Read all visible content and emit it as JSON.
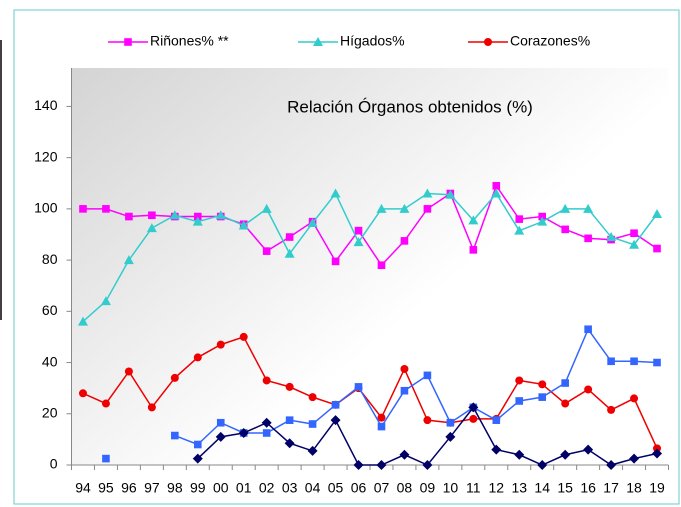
{
  "chart_data": {
    "type": "line",
    "title": "Relación Órganos obtenidos (%)",
    "categories": [
      "94",
      "95",
      "96",
      "97",
      "98",
      "99",
      "00",
      "01",
      "02",
      "03",
      "04",
      "05",
      "06",
      "07",
      "08",
      "09",
      "10",
      "11",
      "12",
      "13",
      "14",
      "15",
      "16",
      "17",
      "18",
      "19"
    ],
    "ylim": [
      0,
      155
    ],
    "yticks": [
      0,
      20,
      40,
      60,
      80,
      100,
      120,
      140
    ],
    "grid": false,
    "legend": "top",
    "series": [
      {
        "name": "Riñones% **",
        "color": "#ff00ff",
        "marker": "square",
        "values": [
          100,
          100,
          97,
          97.5,
          97,
          97,
          97,
          94,
          83.5,
          89,
          95,
          79.5,
          91.5,
          78,
          87.5,
          100,
          106,
          84,
          109,
          96,
          97,
          92,
          88.5,
          88,
          90.5,
          84.5
        ]
      },
      {
        "name": "Hígados%",
        "color": "#33cccc",
        "marker": "triangle",
        "values": [
          56,
          64,
          80,
          92.5,
          97.5,
          95,
          97.5,
          93.5,
          100,
          82.5,
          94.5,
          106,
          87,
          100,
          100,
          106,
          105.5,
          95.5,
          106,
          91.5,
          95,
          100,
          100,
          89,
          86,
          98
        ]
      },
      {
        "name": "Corazones%",
        "color": "#ee0000",
        "marker": "circle",
        "values": [
          28,
          24,
          36.5,
          22.5,
          34,
          42,
          47,
          50,
          33,
          30.5,
          26.5,
          23.5,
          30,
          18.5,
          37.5,
          17.5,
          16.5,
          18,
          18,
          33,
          31.5,
          24,
          29.5,
          21.5,
          26,
          6.5
        ]
      },
      {
        "color": "#3366ff",
        "marker": "square",
        "values": [
          null,
          2.5,
          null,
          null,
          11.5,
          8,
          16.5,
          12.5,
          12.5,
          17.5,
          16,
          23.5,
          30.5,
          15,
          29,
          35,
          16.5,
          22.5,
          17.5,
          25,
          26.5,
          32,
          53,
          40.5,
          40.5,
          40
        ]
      },
      {
        "color": "#000066",
        "marker": "diamond",
        "values": [
          null,
          null,
          null,
          null,
          null,
          2.5,
          11,
          12.5,
          16.5,
          8.5,
          5.5,
          17.5,
          0,
          0,
          4,
          0,
          11,
          22.5,
          6,
          4,
          0,
          4,
          6,
          0,
          2.5,
          4.5
        ]
      }
    ]
  }
}
